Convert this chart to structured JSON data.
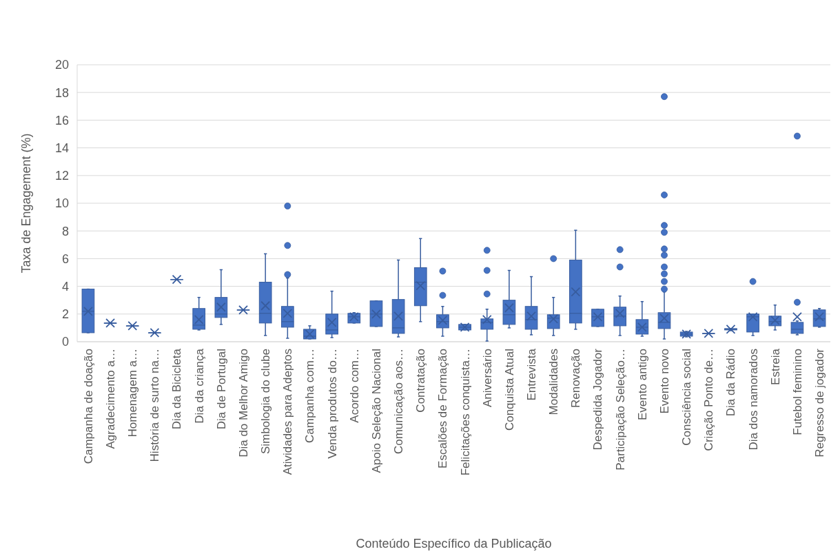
{
  "chart_data": {
    "type": "box",
    "xlabel": "Conteúdo Específico da Publicação",
    "ylabel": "Taxa de Engagement (%)",
    "categories": [
      "Campanha de doação",
      "Agradecimento a…",
      "Homenagem a…",
      "História de surto na…",
      "Dia da Bicicleta",
      "Dia da criança",
      "Dia de Portugal",
      "Dia do Melhor Amigo",
      "Simbologia do clube",
      "Atividades para Adeptos",
      "Campanha com…",
      "Venda produtos do…",
      "Acordo com…",
      "Apoio Seleção Nacional",
      "Comunicação aos…",
      "Contratação",
      "Escalões de Formação",
      "Felicitações conquista…",
      "Aniversário",
      "Conquista Atual",
      "Entrevista",
      "Modalidades",
      "Renovação",
      "Despedida Jogador",
      "Participação Seleção…",
      "Evento antigo",
      "Evento novo",
      "Consciência social",
      "Criação Ponto de…",
      "Dia da Rádio",
      "Dia dos namorados",
      "Estreia",
      "Futebol feminino",
      "Regresso de jogador"
    ],
    "color": "#4472c4",
    "boxes": [
      {
        "low": 0.65,
        "q1": 0.65,
        "median": 2.2,
        "q3": 3.8,
        "high": 3.8,
        "mean": 2.2
      },
      {
        "low": 1.35,
        "q1": 1.35,
        "median": 1.35,
        "q3": 1.35,
        "high": 1.35,
        "mean": 1.35
      },
      {
        "low": 1.15,
        "q1": 1.15,
        "median": 1.15,
        "q3": 1.15,
        "high": 1.15,
        "mean": 1.15
      },
      {
        "low": 0.65,
        "q1": 0.65,
        "median": 0.65,
        "q3": 0.65,
        "high": 0.65,
        "mean": 0.65
      },
      {
        "low": 4.5,
        "q1": 4.5,
        "median": 4.5,
        "q3": 4.5,
        "high": 4.5,
        "mean": 4.5
      },
      {
        "low": 0.85,
        "q1": 0.9,
        "median": 1.2,
        "q3": 2.4,
        "high": 3.2,
        "mean": 1.6
      },
      {
        "low": 1.25,
        "q1": 1.75,
        "median": 2.0,
        "q3": 3.2,
        "high": 5.2,
        "mean": 2.5
      },
      {
        "low": 2.3,
        "q1": 2.3,
        "median": 2.3,
        "q3": 2.3,
        "high": 2.3,
        "mean": 2.3
      },
      {
        "low": 0.45,
        "q1": 1.35,
        "median": 2.05,
        "q3": 4.3,
        "high": 6.35,
        "mean": 2.6
      },
      {
        "low": 0.25,
        "q1": 1.05,
        "median": 1.45,
        "q3": 2.55,
        "high": 4.6,
        "mean": 2.05,
        "outliers": [
          4.85,
          6.95,
          9.8
        ]
      },
      {
        "low": 0.2,
        "q1": 0.2,
        "median": 0.4,
        "q3": 0.9,
        "high": 1.15,
        "mean": 0.55
      },
      {
        "low": 0.3,
        "q1": 0.55,
        "median": 0.85,
        "q3": 2.0,
        "high": 3.65,
        "mean": 1.4
      },
      {
        "low": 1.35,
        "q1": 1.35,
        "median": 1.8,
        "q3": 2.05,
        "high": 2.1,
        "mean": 1.8
      },
      {
        "low": 1.1,
        "q1": 1.1,
        "median": 2.0,
        "q3": 2.95,
        "high": 2.95,
        "mean": 2.0
      },
      {
        "low": 0.35,
        "q1": 0.6,
        "median": 1.0,
        "q3": 3.05,
        "high": 5.9,
        "mean": 1.85
      },
      {
        "low": 1.45,
        "q1": 2.6,
        "median": 4.3,
        "q3": 5.35,
        "high": 7.45,
        "mean": 4.05
      },
      {
        "low": 0.4,
        "q1": 1.0,
        "median": 1.45,
        "q3": 1.95,
        "high": 2.55,
        "mean": 1.55,
        "outliers": [
          3.35,
          5.1
        ]
      },
      {
        "low": 0.85,
        "q1": 0.85,
        "median": 1.05,
        "q3": 1.25,
        "high": 1.25,
        "mean": 1.05
      },
      {
        "low": 0.05,
        "q1": 0.9,
        "median": 1.4,
        "q3": 1.65,
        "high": 2.35,
        "mean": 1.6,
        "outliers": [
          3.45,
          5.15,
          6.6
        ]
      },
      {
        "low": 1.0,
        "q1": 1.25,
        "median": 1.95,
        "q3": 3.0,
        "high": 5.15,
        "mean": 2.45
      },
      {
        "low": 0.5,
        "q1": 0.9,
        "median": 1.6,
        "q3": 2.55,
        "high": 4.7,
        "mean": 1.85
      },
      {
        "low": 0.45,
        "q1": 0.95,
        "median": 1.7,
        "q3": 1.95,
        "high": 3.2,
        "mean": 1.65,
        "outliers": [
          6.0
        ]
      },
      {
        "low": 0.9,
        "q1": 1.35,
        "median": 2.05,
        "q3": 5.9,
        "high": 8.05,
        "mean": 3.6
      },
      {
        "low": 1.1,
        "q1": 1.1,
        "median": 1.8,
        "q3": 2.35,
        "high": 2.35,
        "mean": 1.8
      },
      {
        "low": 0.45,
        "q1": 1.15,
        "median": 1.85,
        "q3": 2.5,
        "high": 3.3,
        "mean": 2.05,
        "outliers": [
          5.4,
          6.65
        ]
      },
      {
        "low": 0.4,
        "q1": 0.55,
        "median": 1.05,
        "q3": 1.6,
        "high": 2.9,
        "mean": 1.05
      },
      {
        "low": 0.2,
        "q1": 0.95,
        "median": 1.4,
        "q3": 2.1,
        "high": 3.6,
        "mean": 1.7,
        "outliers": [
          3.8,
          4.35,
          4.9,
          5.4,
          6.25,
          6.7,
          7.9,
          8.4,
          10.6,
          17.7
        ]
      },
      {
        "low": 0.35,
        "q1": 0.4,
        "median": 0.55,
        "q3": 0.7,
        "high": 0.75,
        "mean": 0.55
      },
      {
        "low": 0.6,
        "q1": 0.6,
        "median": 0.6,
        "q3": 0.6,
        "high": 0.6,
        "mean": 0.6
      },
      {
        "low": 0.8,
        "q1": 0.85,
        "median": 0.9,
        "q3": 0.95,
        "high": 0.95,
        "mean": 0.9
      },
      {
        "low": 0.45,
        "q1": 0.7,
        "median": 1.8,
        "q3": 2.0,
        "high": 2.0,
        "mean": 1.8,
        "outliers": [
          4.35
        ]
      },
      {
        "low": 0.85,
        "q1": 1.15,
        "median": 1.45,
        "q3": 1.85,
        "high": 2.65,
        "mean": 1.55
      },
      {
        "low": 0.5,
        "q1": 0.6,
        "median": 0.9,
        "q3": 1.4,
        "high": 1.5,
        "mean": 1.8,
        "outliers": [
          2.85,
          14.85
        ]
      },
      {
        "low": 1.05,
        "q1": 1.1,
        "median": 1.65,
        "q3": 2.3,
        "high": 2.4,
        "mean": 1.8
      }
    ],
    "ylim": [
      0,
      20
    ],
    "yticks": [
      0,
      2,
      4,
      6,
      8,
      10,
      12,
      14,
      16,
      18,
      20
    ],
    "grid": "y"
  }
}
